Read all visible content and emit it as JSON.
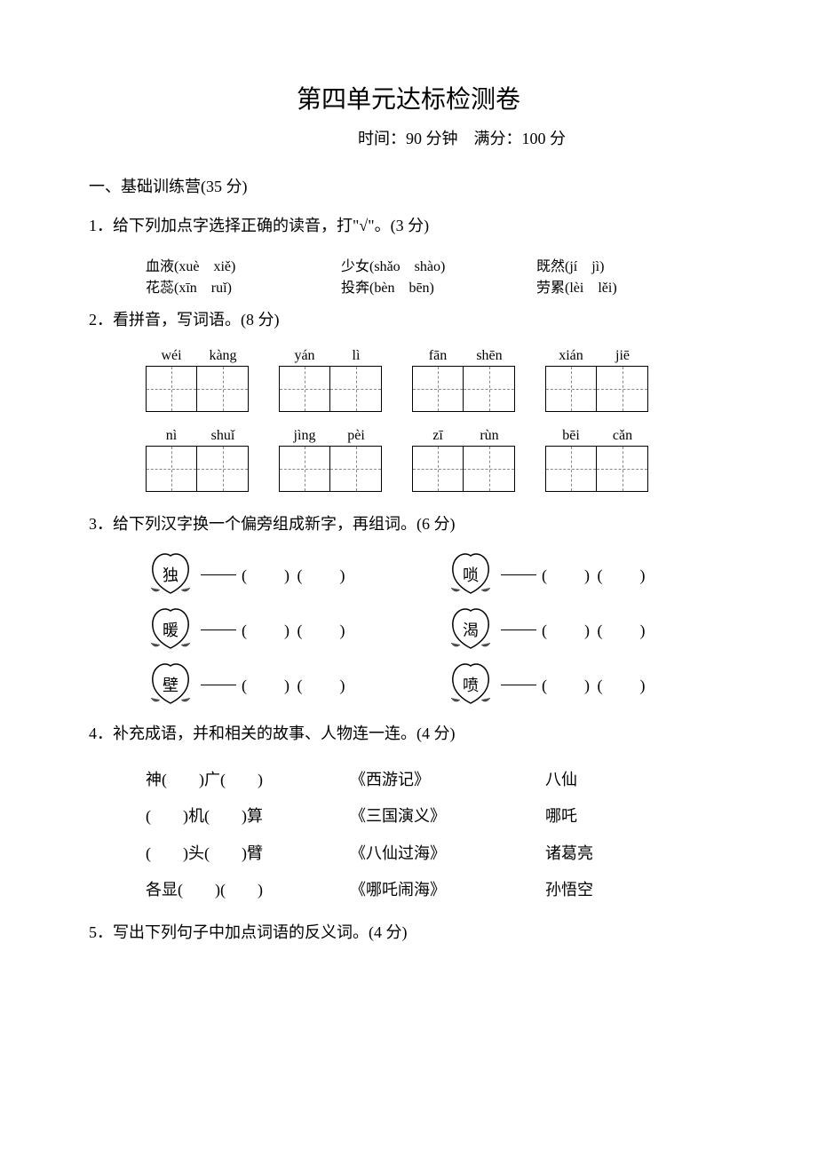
{
  "title": "第四单元达标检测卷",
  "subtitle": "时间：90 分钟　满分：100 分",
  "section1": "一、基础训练营(35 分)",
  "q1": {
    "prompt": "1．给下列加点字选择正确的读音，打\"√\"。(3 分)",
    "items": [
      {
        "word": "血液",
        "py": "(xuè　xiě)"
      },
      {
        "word": "少女",
        "py": "(shǎo　shào)"
      },
      {
        "word": "既然",
        "py": "(jí　jì)"
      },
      {
        "word": "花蕊",
        "py": "(xīn　ruǐ)"
      },
      {
        "word": "投奔",
        "py": "(bèn　bēn)"
      },
      {
        "word": "劳累",
        "py": "(lèi　lěi)"
      }
    ]
  },
  "q2": {
    "prompt": "2．看拼音，写词语。(8 分)",
    "rows": [
      [
        [
          "wéi",
          "kàng"
        ],
        [
          "yán",
          "lì"
        ],
        [
          "fān",
          "shēn"
        ],
        [
          "xián",
          "jiē"
        ]
      ],
      [
        [
          "nì",
          "shuǐ"
        ],
        [
          "jìng",
          "pèi"
        ],
        [
          "zī",
          "rùn"
        ],
        [
          "bēi",
          "cǎn"
        ]
      ]
    ]
  },
  "q3": {
    "prompt": "3．给下列汉字换一个偏旁组成新字，再组词。(6 分)",
    "pairs": [
      [
        "独",
        "唢"
      ],
      [
        "暖",
        "渴"
      ],
      [
        "壁",
        "喷"
      ]
    ],
    "blank": "(　　) (　　)"
  },
  "q4": {
    "prompt": "4．补充成语，并和相关的故事、人物连一连。(4 分)",
    "rows": [
      {
        "idiom": "神(　　)广(　　)",
        "source": "《西游记》",
        "person": "八仙"
      },
      {
        "idiom": "(　　)机(　　)算",
        "source": "《三国演义》",
        "person": "哪吒"
      },
      {
        "idiom": "(　　)头(　　)臂",
        "source": "《八仙过海》",
        "person": "诸葛亮"
      },
      {
        "idiom": "各显(　　)(　　)",
        "source": "《哪吒闹海》",
        "person": "孙悟空"
      }
    ]
  },
  "q5": {
    "prompt": "5．写出下列句子中加点词语的反义词。(4 分)"
  },
  "colors": {
    "text": "#000000",
    "bg": "#ffffff",
    "dash": "#888888"
  }
}
